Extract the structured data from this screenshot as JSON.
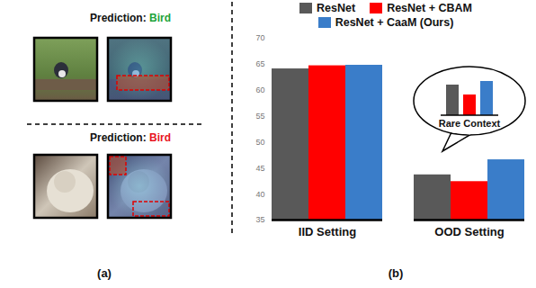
{
  "panel_a": {
    "caption": "(a)",
    "rows": [
      {
        "prediction_label": "Prediction:",
        "prediction": "Bird",
        "prediction_color": "#22a33a"
      },
      {
        "prediction_label": "Prediction:",
        "prediction": "Bird",
        "prediction_color": "#e8141e"
      }
    ]
  },
  "chart_data": [
    {
      "type": "bar",
      "caption": "(b)",
      "categories": [
        "IID Setting",
        "OOD Setting"
      ],
      "series": [
        {
          "name": "ResNet",
          "color": "#595959",
          "values": [
            64.1,
            43.7
          ]
        },
        {
          "name": "ResNet + CBAM",
          "color": "#ff0000",
          "values": [
            64.7,
            42.4
          ]
        },
        {
          "name": "ResNet + CaaM (Ours)",
          "color": "#3a7dc9",
          "values": [
            64.8,
            46.6
          ]
        }
      ],
      "ylim": [
        35,
        70
      ],
      "yticks": [
        35,
        40,
        45,
        50,
        55,
        60,
        65,
        70
      ],
      "grid": false,
      "legend": "top"
    },
    {
      "type": "bar",
      "title": "Rare Context",
      "values": [
        34,
        23,
        38
      ],
      "colors": [
        "#595959",
        "#ff0000",
        "#3a7dc9"
      ],
      "tick_labels": false
    }
  ]
}
